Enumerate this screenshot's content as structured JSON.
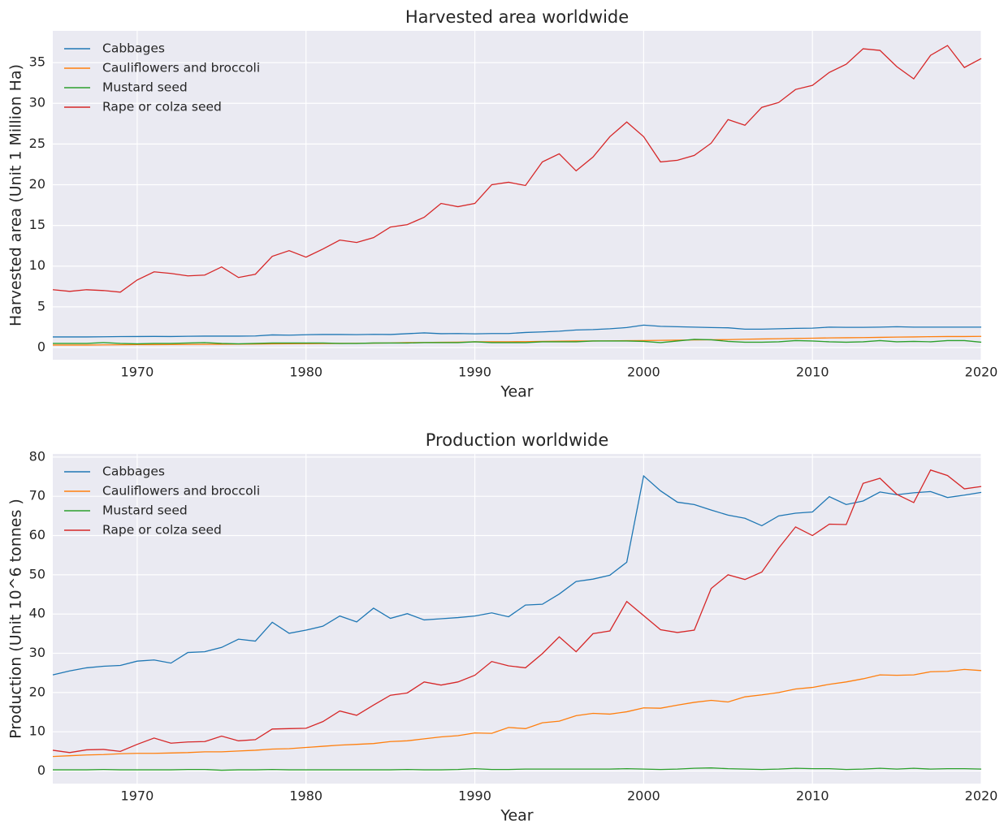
{
  "chart_data": [
    {
      "type": "line",
      "title": "Harvested area worldwide",
      "x_label": "Year",
      "y_label": "Harvested area (Unit 1 Million Ha)",
      "x": [
        1965,
        1966,
        1967,
        1968,
        1969,
        1970,
        1971,
        1972,
        1973,
        1974,
        1975,
        1976,
        1977,
        1978,
        1979,
        1980,
        1981,
        1982,
        1983,
        1984,
        1985,
        1986,
        1987,
        1988,
        1989,
        1990,
        1991,
        1992,
        1993,
        1994,
        1995,
        1996,
        1997,
        1998,
        1999,
        2000,
        2001,
        2002,
        2003,
        2004,
        2005,
        2006,
        2007,
        2008,
        2009,
        2010,
        2011,
        2012,
        2013,
        2014,
        2015,
        2016,
        2017,
        2018,
        2019,
        2020
      ],
      "xlim": [
        1965,
        2020
      ],
      "xticks": [
        1970,
        1980,
        1990,
        2000,
        2010,
        2020
      ],
      "ylim": [
        -1.5,
        38.9
      ],
      "yticks": [
        0,
        5,
        10,
        15,
        20,
        25,
        30,
        35
      ],
      "grid": true,
      "legend": "upper left",
      "series": [
        {
          "name": "Cabbages",
          "color": "#1f77b4",
          "values": [
            1.3,
            1.3,
            1.3,
            1.32,
            1.34,
            1.35,
            1.36,
            1.35,
            1.38,
            1.4,
            1.4,
            1.4,
            1.42,
            1.55,
            1.52,
            1.57,
            1.6,
            1.6,
            1.58,
            1.62,
            1.6,
            1.7,
            1.8,
            1.7,
            1.72,
            1.68,
            1.72,
            1.72,
            1.85,
            1.92,
            2.0,
            2.15,
            2.2,
            2.3,
            2.45,
            2.75,
            2.6,
            2.55,
            2.5,
            2.45,
            2.42,
            2.25,
            2.25,
            2.3,
            2.35,
            2.38,
            2.5,
            2.48,
            2.48,
            2.5,
            2.55,
            2.5,
            2.5,
            2.5,
            2.5,
            2.5
          ]
        },
        {
          "name": "Cauliflowers and broccoli",
          "color": "#ff7f0e",
          "values": [
            0.3,
            0.3,
            0.3,
            0.32,
            0.33,
            0.35,
            0.35,
            0.36,
            0.37,
            0.38,
            0.4,
            0.41,
            0.42,
            0.45,
            0.46,
            0.47,
            0.49,
            0.5,
            0.52,
            0.54,
            0.56,
            0.6,
            0.62,
            0.64,
            0.66,
            0.7,
            0.7,
            0.71,
            0.72,
            0.75,
            0.78,
            0.8,
            0.8,
            0.82,
            0.84,
            0.86,
            0.88,
            0.9,
            0.93,
            0.95,
            0.97,
            1.02,
            1.05,
            1.08,
            1.12,
            1.14,
            1.18,
            1.2,
            1.22,
            1.25,
            1.28,
            1.3,
            1.33,
            1.35,
            1.35,
            1.37
          ]
        },
        {
          "name": "Mustard seed",
          "color": "#2ca02c",
          "values": [
            0.5,
            0.5,
            0.5,
            0.6,
            0.5,
            0.45,
            0.5,
            0.5,
            0.55,
            0.6,
            0.5,
            0.45,
            0.5,
            0.55,
            0.55,
            0.55,
            0.55,
            0.5,
            0.5,
            0.55,
            0.55,
            0.55,
            0.6,
            0.6,
            0.6,
            0.7,
            0.6,
            0.6,
            0.6,
            0.7,
            0.7,
            0.7,
            0.8,
            0.8,
            0.8,
            0.75,
            0.6,
            0.8,
            1.0,
            0.95,
            0.75,
            0.65,
            0.65,
            0.7,
            0.85,
            0.8,
            0.7,
            0.65,
            0.7,
            0.85,
            0.7,
            0.75,
            0.7,
            0.85,
            0.85,
            0.65
          ]
        },
        {
          "name": "Rape or colza seed",
          "color": "#d62728",
          "values": [
            7.1,
            6.9,
            7.1,
            7.0,
            6.8,
            8.3,
            9.3,
            9.1,
            8.8,
            8.9,
            9.9,
            8.6,
            9.0,
            11.2,
            11.9,
            11.1,
            12.1,
            13.2,
            12.9,
            13.5,
            14.8,
            15.1,
            16.0,
            17.7,
            17.3,
            17.7,
            20.0,
            20.3,
            19.9,
            22.8,
            23.8,
            21.7,
            23.4,
            25.9,
            27.7,
            25.9,
            22.8,
            23.0,
            23.6,
            25.1,
            28.0,
            27.3,
            29.5,
            30.1,
            31.7,
            32.2,
            33.8,
            34.8,
            36.7,
            36.5,
            34.5,
            33.0,
            35.9,
            37.1,
            34.4,
            35.5
          ]
        }
      ]
    },
    {
      "type": "line",
      "title": "Production worldwide",
      "x_label": "Year",
      "y_label": "Production (Unit 10^6 tonnes )",
      "x": [
        1965,
        1966,
        1967,
        1968,
        1969,
        1970,
        1971,
        1972,
        1973,
        1974,
        1975,
        1976,
        1977,
        1978,
        1979,
        1980,
        1981,
        1982,
        1983,
        1984,
        1985,
        1986,
        1987,
        1988,
        1989,
        1990,
        1991,
        1992,
        1993,
        1994,
        1995,
        1996,
        1997,
        1998,
        1999,
        2000,
        2001,
        2002,
        2003,
        2004,
        2005,
        2006,
        2007,
        2008,
        2009,
        2010,
        2011,
        2012,
        2013,
        2014,
        2015,
        2016,
        2017,
        2018,
        2019,
        2020
      ],
      "xlim": [
        1965,
        2020
      ],
      "xticks": [
        1970,
        1980,
        1990,
        2000,
        2010,
        2020
      ],
      "ylim": [
        -3.2,
        80.8
      ],
      "yticks": [
        0,
        10,
        20,
        30,
        40,
        50,
        60,
        70,
        80
      ],
      "grid": true,
      "legend": "upper left",
      "series": [
        {
          "name": "Cabbages",
          "color": "#1f77b4",
          "values": [
            24.5,
            25.5,
            26.3,
            26.7,
            26.9,
            28.0,
            28.3,
            27.5,
            30.2,
            30.4,
            31.5,
            33.6,
            33.1,
            37.9,
            35.1,
            35.9,
            36.9,
            39.5,
            38.0,
            41.5,
            38.9,
            40.1,
            38.5,
            38.8,
            39.1,
            39.5,
            40.3,
            39.3,
            42.3,
            42.5,
            45.1,
            48.3,
            48.9,
            49.9,
            53.2,
            75.2,
            71.4,
            68.5,
            67.9,
            66.5,
            65.2,
            64.4,
            62.5,
            65.0,
            65.7,
            66.0,
            69.9,
            67.9,
            68.8,
            71.1,
            70.4,
            70.9,
            71.2,
            69.7,
            70.3,
            71.0
          ]
        },
        {
          "name": "Cauliflowers and broccoli",
          "color": "#ff7f0e",
          "values": [
            3.7,
            3.9,
            4.1,
            4.2,
            4.4,
            4.5,
            4.5,
            4.6,
            4.7,
            4.9,
            4.9,
            5.1,
            5.3,
            5.6,
            5.7,
            6.0,
            6.3,
            6.6,
            6.8,
            7.0,
            7.5,
            7.7,
            8.2,
            8.7,
            9.0,
            9.7,
            9.6,
            11.1,
            10.8,
            12.3,
            12.7,
            14.1,
            14.7,
            14.5,
            15.1,
            16.1,
            16.0,
            16.8,
            17.5,
            18.0,
            17.6,
            18.9,
            19.4,
            20.0,
            20.9,
            21.3,
            22.1,
            22.7,
            23.5,
            24.5,
            24.4,
            24.5,
            25.3,
            25.4,
            25.9,
            25.6
          ]
        },
        {
          "name": "Mustard seed",
          "color": "#2ca02c",
          "values": [
            0.3,
            0.3,
            0.3,
            0.4,
            0.3,
            0.3,
            0.3,
            0.3,
            0.4,
            0.4,
            0.2,
            0.3,
            0.3,
            0.4,
            0.3,
            0.3,
            0.3,
            0.3,
            0.3,
            0.3,
            0.3,
            0.4,
            0.3,
            0.3,
            0.4,
            0.6,
            0.4,
            0.4,
            0.5,
            0.5,
            0.5,
            0.5,
            0.5,
            0.5,
            0.6,
            0.5,
            0.4,
            0.5,
            0.7,
            0.8,
            0.6,
            0.5,
            0.4,
            0.5,
            0.7,
            0.6,
            0.6,
            0.4,
            0.5,
            0.7,
            0.5,
            0.7,
            0.5,
            0.6,
            0.6,
            0.5
          ]
        },
        {
          "name": "Rape or colza seed",
          "color": "#d62728",
          "values": [
            5.3,
            4.7,
            5.4,
            5.5,
            5.0,
            6.8,
            8.4,
            7.1,
            7.4,
            7.5,
            8.9,
            7.7,
            8.0,
            10.7,
            10.8,
            10.9,
            12.6,
            15.3,
            14.2,
            16.8,
            19.3,
            19.9,
            22.7,
            21.9,
            22.7,
            24.4,
            27.9,
            26.8,
            26.3,
            29.9,
            34.2,
            30.4,
            35.0,
            35.7,
            43.2,
            39.6,
            36.0,
            35.3,
            35.9,
            46.5,
            50.0,
            48.8,
            50.7,
            56.8,
            62.2,
            60.0,
            62.9,
            62.8,
            73.3,
            74.6,
            70.5,
            68.4,
            76.7,
            75.3,
            71.9,
            72.5
          ]
        }
      ]
    }
  ]
}
